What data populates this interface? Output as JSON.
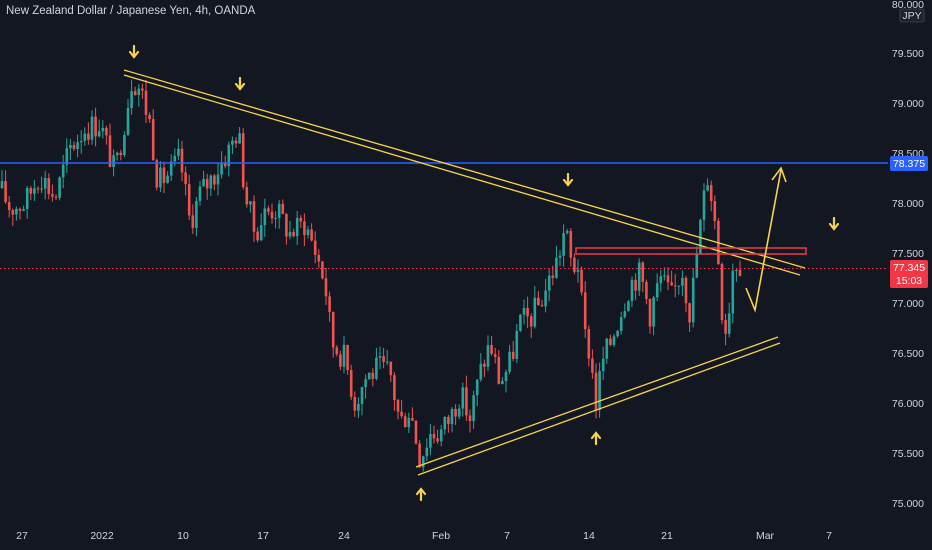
{
  "header": {
    "title": "New Zealand Dollar / Japanese Yen, 4h, OANDA"
  },
  "currency_badge": "JPY",
  "chart_data": {
    "type": "candlestick",
    "symbol": "NZDJPY",
    "timeframe": "4h",
    "source": "OANDA",
    "ylim": [
      75.0,
      80.0
    ],
    "y_ticks": [
      "75.000",
      "75.500",
      "76.000",
      "76.500",
      "77.000",
      "77.500",
      "78.000",
      "78.500",
      "79.000",
      "79.500"
    ],
    "y_top_label": "80.000",
    "x_ticks": [
      "27",
      "2022",
      "10",
      "17",
      "24",
      "Feb",
      "7",
      "14",
      "21",
      "Mar",
      "7"
    ],
    "price_line": {
      "value": 78.375,
      "label": "78.375",
      "color": "#2962ff"
    },
    "last_price": {
      "value": 77.345,
      "label": "77.345",
      "countdown": "15:03",
      "color": "#f23645"
    },
    "annotations": {
      "arrows_down_count": 4,
      "arrows_up_count": 2,
      "trendline_color": "#f7d54a",
      "projection_color": "#f7d54a",
      "box_color": "#f23645"
    },
    "colors": {
      "up": "#26a69a",
      "down": "#ef5350",
      "background": "#131722"
    }
  }
}
